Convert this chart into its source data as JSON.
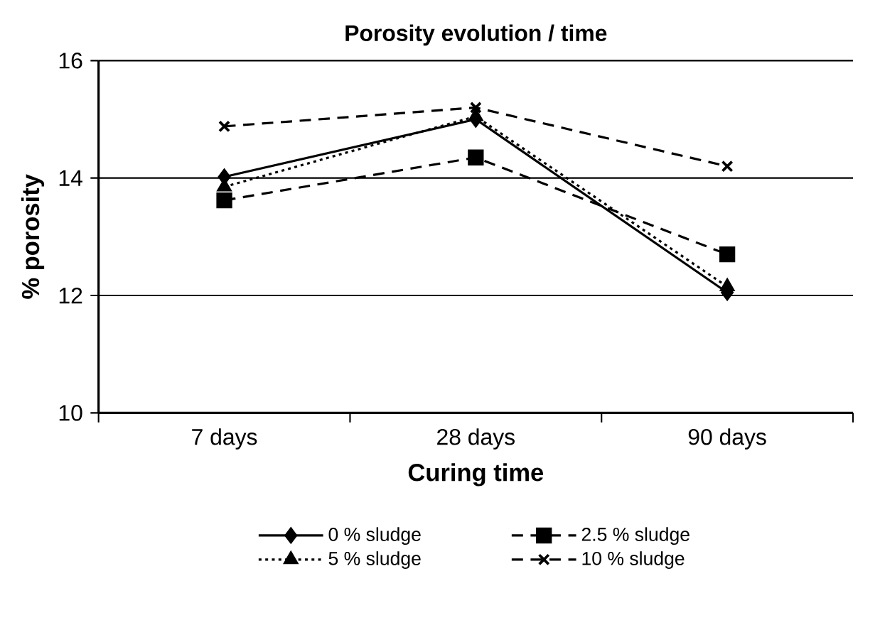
{
  "chart_data": {
    "type": "line",
    "title": "Porosity evolution / time",
    "xlabel": "Curing time",
    "ylabel": "% porosity",
    "categories": [
      "7 days",
      "28 days",
      "90 days"
    ],
    "series": [
      {
        "name": "0 % sludge",
        "color": "#000000",
        "values": [
          14.02,
          15.0,
          12.05
        ],
        "marker": "diamond",
        "line_style": "solid"
      },
      {
        "name": "2.5 % sludge",
        "color": "#000000",
        "values": [
          13.62,
          14.35,
          12.7
        ],
        "marker": "square",
        "line_style": "dashed"
      },
      {
        "name": "5 % sludge",
        "color": "#000000",
        "values": [
          13.85,
          15.05,
          12.15
        ],
        "marker": "triangle",
        "line_style": "dotted"
      },
      {
        "name": "10 % sludge",
        "color": "#000000",
        "values": [
          14.88,
          15.2,
          14.2
        ],
        "marker": "cross",
        "line_style": "dashed"
      }
    ],
    "ylim": [
      10,
      16
    ],
    "yticks": [
      10,
      12,
      14,
      16
    ],
    "grid": "y",
    "legend": "bottom"
  }
}
